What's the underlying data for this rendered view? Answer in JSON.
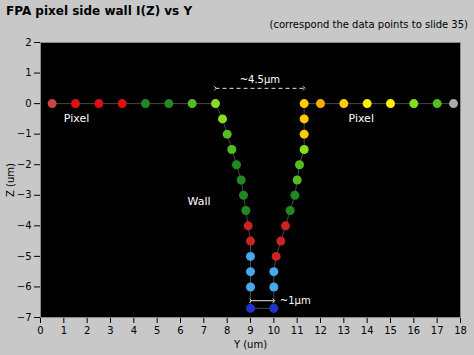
{
  "chart_data": {
    "type": "line",
    "title": "FPA pixel side wall I(Z) vs Y",
    "subtitle": "(correspond the data points to slide 35)",
    "xlabel": "Y (um)",
    "ylabel": "Z (um)",
    "xlim": [
      0,
      18
    ],
    "ylim": [
      -7,
      2
    ],
    "xticks": [
      0,
      1,
      2,
      3,
      4,
      5,
      6,
      7,
      8,
      9,
      10,
      11,
      12,
      13,
      14,
      15,
      16,
      17,
      18
    ],
    "yticks": [
      -7,
      -6,
      -5,
      -4,
      -3,
      -2,
      -1,
      0,
      1,
      2
    ],
    "grid": false,
    "series": [
      {
        "x": [
          0.5,
          1.5,
          2.5,
          3.5,
          4.5,
          5.5,
          6.5,
          7.5,
          7.8,
          8.0,
          8.2,
          8.4,
          8.6,
          8.7,
          8.8,
          8.9,
          9.0,
          9.0,
          9.0,
          9.0,
          9.0
        ],
        "values": [
          0.0,
          0.0,
          0.0,
          0.0,
          0.0,
          0.0,
          0.0,
          0.0,
          -0.5,
          -1.0,
          -1.5,
          -2.0,
          -2.5,
          -3.0,
          -3.5,
          -4.0,
          -4.5,
          -5.0,
          -5.5,
          -6.0,
          -6.7
        ],
        "color": "#666666",
        "marker": "o",
        "colors": [
          "#cc4444",
          "#dd1111",
          "#dd1111",
          "#dd1111",
          "#228822",
          "#228822",
          "#55bb22",
          "#88dd22",
          "#88dd22",
          "#55bb22",
          "#55bb22",
          "#228822",
          "#228822",
          "#228822",
          "#228822",
          "#cc2222",
          "#cc2222",
          "#44aaee",
          "#44aaee",
          "#44aaee",
          "#2233cc"
        ]
      },
      {
        "x": [
          10.0,
          10.0,
          10.0,
          10.1,
          10.3,
          10.5,
          10.7,
          10.9,
          11.0,
          11.1,
          11.3,
          11.3,
          11.3,
          11.3,
          12.0,
          13.0,
          14.0,
          15.0,
          16.0,
          17.0,
          17.7
        ],
        "values": [
          -6.7,
          -6.0,
          -5.5,
          -5.0,
          -4.5,
          -4.0,
          -3.5,
          -3.0,
          -2.5,
          -2.0,
          -1.5,
          -1.0,
          -0.5,
          0.0,
          0.0,
          0.0,
          0.0,
          0.0,
          0.0,
          0.0,
          0.0
        ],
        "color": "#666666",
        "marker": "o",
        "colors": [
          "#2233cc",
          "#44aaee",
          "#44aaee",
          "#cc2222",
          "#cc2222",
          "#cc2222",
          "#228822",
          "#228822",
          "#55bb22",
          "#55bb22",
          "#88dd22",
          "#ffcc00",
          "#ffcc00",
          "#ffcc00",
          "#ffaa00",
          "#ffcc00",
          "#ffee00",
          "#ffee00",
          "#88dd22",
          "#55bb22",
          "#aaaaaa"
        ]
      },
      {
        "x": [
          9.0,
          10.0
        ],
        "values": [
          -6.7,
          -6.7
        ],
        "color": "#666666"
      }
    ],
    "annotations": [
      {
        "text": "Wall",
        "x": 6.3,
        "y": -3.2
      },
      {
        "text": "Pixel",
        "x": 1.0,
        "y": -0.5
      },
      {
        "text": "Pixel",
        "x": 13.2,
        "y": -0.5
      }
    ],
    "arrows": [
      {
        "text": "~4.5μm",
        "x_start": 7.5,
        "x_end": 11.3,
        "y": 0.5,
        "line_style": "dashed"
      },
      {
        "text": "~1μm",
        "x_start": 9.0,
        "x_end": 10.0,
        "y": -6.45,
        "line_style": "solid"
      }
    ]
  }
}
